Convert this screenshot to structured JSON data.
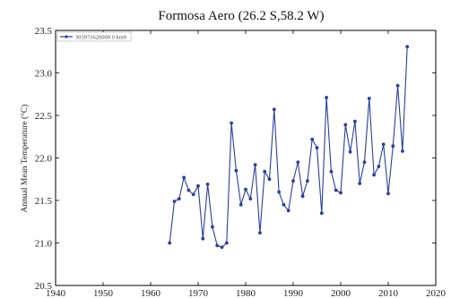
{
  "chart_data": {
    "type": "line",
    "title": "Formosa Aero (26.2 S,58.2 W)",
    "xlabel": "",
    "ylabel": "Annual Mean Temperature (°C)",
    "xlim": [
      1940,
      2020
    ],
    "ylim": [
      20.5,
      23.5
    ],
    "x_ticks": [
      "1940",
      "1950",
      "1960",
      "1970",
      "1980",
      "1990",
      "2000",
      "2010",
      "2020"
    ],
    "y_ticks": [
      "20.5",
      "21.0",
      "21.5",
      "22.0",
      "22.5",
      "23.0",
      "23.5"
    ],
    "grid": false,
    "legend_position": "top-left",
    "line_color": "#2a3f9a",
    "series": [
      {
        "name": "303971620000 0 km9",
        "x": [
          1964,
          1965,
          1966,
          1967,
          1968,
          1969,
          1970,
          1971,
          1972,
          1973,
          1974,
          1975,
          1976,
          1977,
          1978,
          1979,
          1980,
          1981,
          1982,
          1983,
          1984,
          1985,
          1986,
          1987,
          1988,
          1989,
          1990,
          1991,
          1992,
          1993,
          1994,
          1995,
          1996,
          1997,
          1998,
          1999,
          2000,
          2001,
          2002,
          2003,
          2004,
          2005,
          2006,
          2007,
          2008,
          2009,
          2010,
          2011,
          2012,
          2013,
          2014
        ],
        "values": [
          21.0,
          21.49,
          21.52,
          21.77,
          21.62,
          21.57,
          21.67,
          21.05,
          21.69,
          21.19,
          20.97,
          20.95,
          21.0,
          22.41,
          21.85,
          21.45,
          21.63,
          21.52,
          21.92,
          21.12,
          21.84,
          21.75,
          22.57,
          21.6,
          21.45,
          21.38,
          21.73,
          21.95,
          21.55,
          21.73,
          22.22,
          22.12,
          21.35,
          22.71,
          21.84,
          21.62,
          21.59,
          22.39,
          22.07,
          22.43,
          21.7,
          21.95,
          22.7,
          21.8,
          21.9,
          22.16,
          21.58,
          22.14,
          22.85,
          22.08,
          23.31
        ]
      }
    ]
  }
}
